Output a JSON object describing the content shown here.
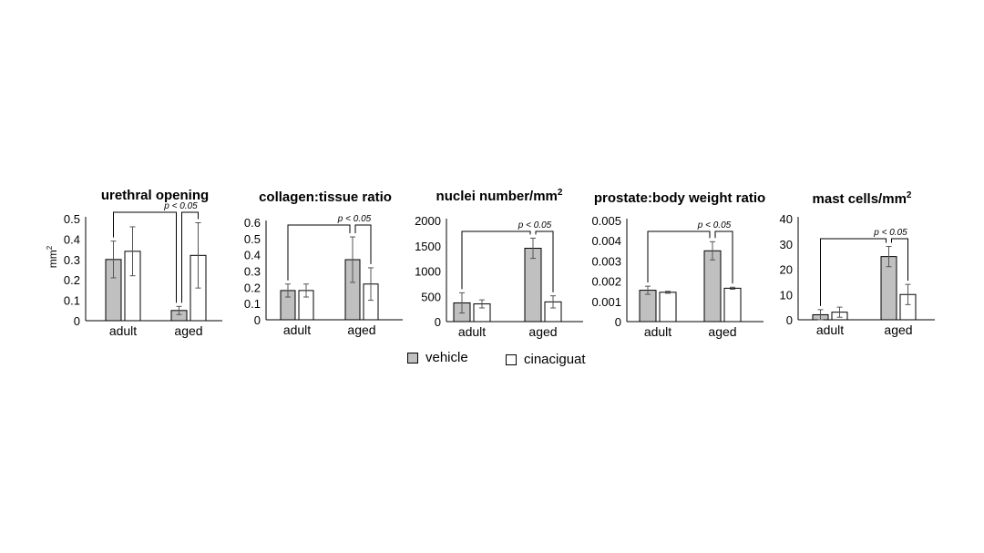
{
  "colors": {
    "vehicle": "#c0c0c0",
    "cinaciguat": "#ffffff",
    "axis": "#000000",
    "error": "#555555"
  },
  "legend": {
    "vehicle_label": "vehicle",
    "cinaciguat_label": "cinaciguat"
  },
  "chart_data": [
    {
      "type": "bar",
      "title": "urethral opening",
      "ylabel": "mm²",
      "categories": [
        "adult",
        "aged"
      ],
      "ylim": [
        0,
        0.5
      ],
      "yticks": [
        "0",
        "0.1",
        "0.2",
        "0.3",
        "0.4",
        "0.5"
      ],
      "series": [
        {
          "name": "vehicle",
          "values": [
            0.3,
            0.05
          ],
          "errors": [
            0.09,
            0.02
          ]
        },
        {
          "name": "cinaciguat",
          "values": [
            0.34,
            0.32
          ],
          "errors": [
            0.12,
            0.16
          ]
        }
      ],
      "annotation": "p < 0.05"
    },
    {
      "type": "bar",
      "title": "collagen:tissue ratio",
      "ylabel": "",
      "categories": [
        "adult",
        "aged"
      ],
      "ylim": [
        0,
        0.6
      ],
      "yticks": [
        "0",
        "0.1",
        "0.2",
        "0.3",
        "0.4",
        "0.5",
        "0.6"
      ],
      "series": [
        {
          "name": "vehicle",
          "values": [
            0.18,
            0.37
          ],
          "errors": [
            0.04,
            0.14
          ]
        },
        {
          "name": "cinaciguat",
          "values": [
            0.18,
            0.22
          ],
          "errors": [
            0.04,
            0.1
          ]
        }
      ],
      "annotation": "p < 0.05"
    },
    {
      "type": "bar",
      "title": "nuclei number/mm²",
      "ylabel": "",
      "categories": [
        "adult",
        "aged"
      ],
      "ylim": [
        0,
        2000
      ],
      "yticks": [
        "0",
        "500",
        "1000",
        "1500",
        "2000"
      ],
      "series": [
        {
          "name": "vehicle",
          "values": [
            370,
            1450
          ],
          "errors": [
            200,
            200
          ]
        },
        {
          "name": "cinaciguat",
          "values": [
            350,
            390
          ],
          "errors": [
            80,
            120
          ]
        }
      ],
      "annotation": "p < 0.05"
    },
    {
      "type": "bar",
      "title": "prostate:body weight ratio",
      "ylabel": "",
      "categories": [
        "adult",
        "aged"
      ],
      "ylim": [
        0,
        0.005
      ],
      "yticks": [
        "0",
        "0.001",
        "0.002",
        "0.003",
        "0.004",
        "0.005"
      ],
      "series": [
        {
          "name": "vehicle",
          "values": [
            0.00155,
            0.0035
          ],
          "errors": [
            0.0002,
            0.00045
          ]
        },
        {
          "name": "cinaciguat",
          "values": [
            0.00145,
            0.00165
          ],
          "errors": [
            5e-05,
            5e-05
          ]
        }
      ],
      "annotation": "p < 0.05"
    },
    {
      "type": "bar",
      "title": "mast cells/mm²",
      "ylabel": "",
      "categories": [
        "adult",
        "aged"
      ],
      "ylim": [
        0,
        40
      ],
      "yticks": [
        "0",
        "10",
        "20",
        "30",
        "40"
      ],
      "series": [
        {
          "name": "vehicle",
          "values": [
            2,
            25
          ],
          "errors": [
            2,
            4
          ]
        },
        {
          "name": "cinaciguat",
          "values": [
            3,
            10
          ],
          "errors": [
            2,
            4
          ]
        }
      ],
      "annotation": "p < 0.05"
    }
  ]
}
